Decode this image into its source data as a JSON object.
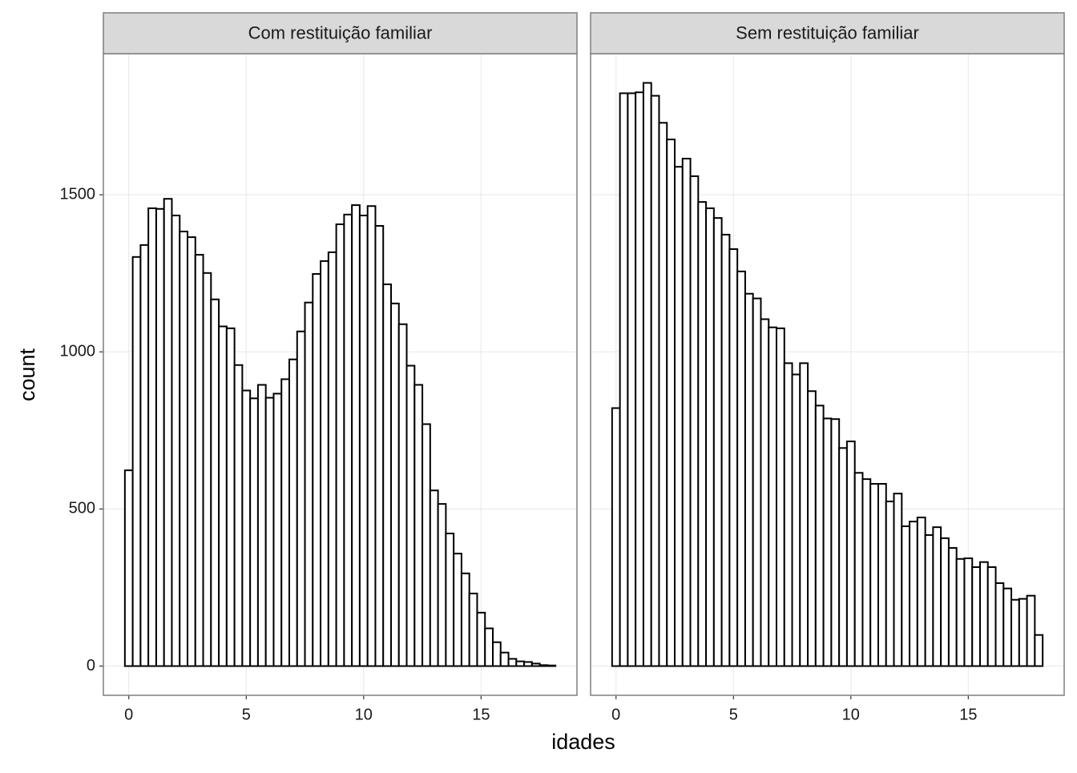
{
  "axis_labels": {
    "x": "idades",
    "y": "count"
  },
  "chart_data": [
    {
      "type": "histogram",
      "title": "Com restituição familiar",
      "bins": [
        -0.167,
        0.167,
        0.5,
        0.833,
        1.167,
        1.5,
        1.833,
        2.167,
        2.5,
        2.833,
        3.167,
        3.5,
        3.833,
        4.167,
        4.5,
        4.833,
        5.167,
        5.5,
        5.833,
        6.167,
        6.5,
        6.833,
        7.167,
        7.5,
        7.833,
        8.167,
        8.5,
        8.833,
        9.167,
        9.5,
        9.833,
        10.167,
        10.5,
        10.833,
        11.167,
        11.5,
        11.833,
        12.167,
        12.5,
        12.833,
        13.167,
        13.5,
        13.833,
        14.167,
        14.5,
        14.833,
        15.167,
        15.5,
        15.833,
        16.167,
        16.5,
        16.833,
        17.167,
        17.5,
        17.833,
        18.167
      ],
      "values": [
        623,
        1302,
        1340,
        1457,
        1455,
        1487,
        1434,
        1383,
        1365,
        1309,
        1251,
        1167,
        1081,
        1075,
        958,
        877,
        852,
        895,
        854,
        867,
        913,
        976,
        1065,
        1157,
        1248,
        1289,
        1317,
        1406,
        1437,
        1467,
        1434,
        1464,
        1401,
        1215,
        1154,
        1088,
        956,
        895,
        770,
        559,
        516,
        422,
        358,
        295,
        231,
        170,
        120,
        76,
        43,
        23,
        15,
        13,
        8,
        3,
        2
      ],
      "xlim": [
        -1.083,
        19.083
      ],
      "ylim": [
        -93,
        1949
      ],
      "xticks": [
        0,
        5,
        10,
        15
      ],
      "yticks": [
        0,
        500,
        1000,
        1500
      ],
      "grid": true
    },
    {
      "type": "histogram",
      "title": "Sem restituição familiar",
      "bins": [
        -0.167,
        0.167,
        0.5,
        0.833,
        1.167,
        1.5,
        1.833,
        2.167,
        2.5,
        2.833,
        3.167,
        3.5,
        3.833,
        4.167,
        4.5,
        4.833,
        5.167,
        5.5,
        5.833,
        6.167,
        6.5,
        6.833,
        7.167,
        7.5,
        7.833,
        8.167,
        8.5,
        8.833,
        9.167,
        9.5,
        9.833,
        10.167,
        10.5,
        10.833,
        11.167,
        11.5,
        11.833,
        12.167,
        12.5,
        12.833,
        13.167,
        13.5,
        13.833,
        14.167,
        14.5,
        14.833,
        15.167,
        15.5,
        15.833,
        16.167,
        16.5,
        16.833,
        17.167,
        17.5,
        17.833,
        18.167
      ],
      "values": [
        821,
        1823,
        1823,
        1826,
        1856,
        1815,
        1729,
        1676,
        1589,
        1615,
        1559,
        1477,
        1457,
        1426,
        1373,
        1327,
        1256,
        1185,
        1170,
        1104,
        1078,
        1075,
        964,
        928,
        964,
        875,
        829,
        788,
        786,
        694,
        715,
        615,
        595,
        580,
        580,
        524,
        549,
        445,
        460,
        473,
        417,
        442,
        407,
        376,
        341,
        343,
        315,
        331,
        315,
        264,
        247,
        211,
        214,
        224,
        99
      ],
      "xlim": [
        -1.083,
        19.083
      ],
      "ylim": [
        -93,
        1949
      ],
      "xticks": [
        0,
        5,
        10,
        15
      ],
      "yticks": [
        0,
        500,
        1000,
        1500
      ],
      "grid": true
    }
  ]
}
